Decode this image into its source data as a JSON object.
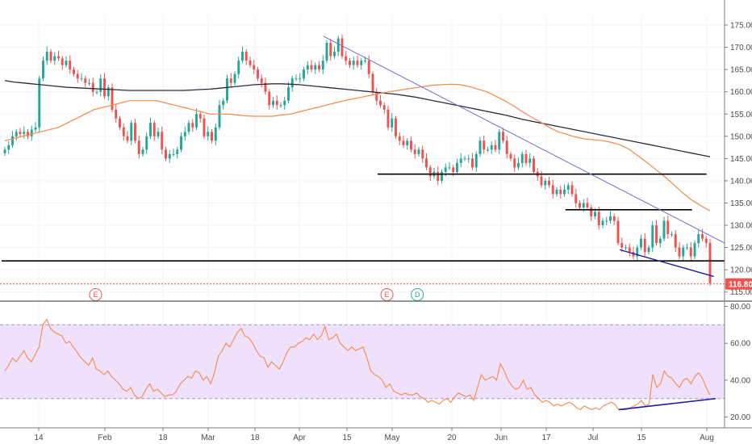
{
  "colors": {
    "up": "#26a69a",
    "down": "#ef5350",
    "ma_fast": "#f7894a",
    "ma_slow": "#2c2c3a",
    "trend": "#6a6fd8",
    "level": "#000000",
    "rsi": "#f7894a",
    "rsi_band": "#efe1fb",
    "rsi_divergence": "#1a1aa6",
    "price_tag": "#ef5350",
    "earnings": "#ef5350",
    "dividend": "#26a69a",
    "grid": "#f0f3fa",
    "axis": "#7d7d7d"
  },
  "chart_data": [
    {
      "type": "candlestick",
      "x_labels": [
        "14",
        "Feb",
        "18",
        "Mar",
        "18",
        "Apr",
        "15",
        "May",
        "20",
        "Jun",
        "17",
        "Jul",
        "15",
        "Aug"
      ],
      "y_ticks": [
        "175.00",
        "170.00",
        "165.00",
        "160.00",
        "155.00",
        "150.00",
        "145.00",
        "140.00",
        "135.00",
        "130.00",
        "125.00",
        "120.00",
        "115.00"
      ],
      "ylim": [
        113.5,
        177
      ],
      "last_price": 116.8,
      "last_price_label": "116.80",
      "closes": [
        147,
        148,
        150,
        151,
        150.5,
        151,
        150,
        151.5,
        152,
        163,
        167,
        169,
        167,
        168,
        167.5,
        166,
        167,
        165,
        164,
        163,
        163,
        162,
        162,
        160,
        160,
        163,
        159,
        161,
        156,
        154,
        152,
        150,
        149,
        153,
        149,
        146,
        147,
        150,
        153,
        150,
        151,
        147,
        145,
        146,
        146,
        147,
        150,
        151,
        153,
        152,
        155,
        154,
        150,
        151,
        149,
        152,
        157,
        158,
        163,
        162,
        164,
        167,
        169,
        167,
        166,
        165,
        163,
        162,
        160,
        157,
        158,
        157,
        157,
        158,
        161,
        163,
        163,
        163,
        165,
        166,
        165,
        166,
        165,
        167,
        171,
        168,
        169,
        172,
        168,
        167,
        166,
        167,
        166,
        167,
        167,
        164,
        160,
        158,
        157,
        156,
        152,
        154,
        150,
        149,
        148,
        149,
        147,
        146,
        147,
        145,
        143,
        141,
        142,
        140,
        142,
        143,
        143,
        142,
        144,
        145,
        145,
        145,
        143,
        146,
        149,
        147,
        147,
        148,
        147,
        151,
        149,
        146,
        145,
        143,
        144,
        146,
        144,
        145,
        142,
        141,
        139,
        140,
        139,
        137,
        138,
        137,
        138,
        139,
        137,
        135,
        134,
        135,
        134,
        132,
        133,
        130,
        131,
        131,
        132,
        131,
        126,
        125,
        125,
        124,
        123,
        125,
        127,
        124,
        125,
        130,
        126,
        127,
        131,
        128,
        128,
        125,
        123,
        125,
        125,
        123,
        126,
        128,
        127,
        126,
        117
      ],
      "ma50": [
        149,
        149.5,
        150,
        150.5,
        151,
        151.5,
        152,
        153,
        154,
        155,
        156,
        156.5,
        157,
        157.5,
        158,
        158,
        158,
        158,
        157.5,
        157,
        156.5,
        156,
        155.5,
        155,
        155,
        155,
        154.8,
        154.6,
        154.5,
        154.5,
        154.5,
        154.8,
        155,
        155.5,
        156,
        156.5,
        157,
        157.5,
        158,
        158.4,
        158.8,
        159.2,
        159.6,
        160,
        160.3,
        160.6,
        160.9,
        161.2,
        161.5,
        161.6,
        161.7,
        161.6,
        161.2,
        160.6,
        160,
        159,
        158,
        156.8,
        155.5,
        154.3,
        153.2,
        152,
        151,
        150.4,
        149.8,
        149.4,
        149.2,
        149,
        148.6,
        148,
        147,
        145.5,
        144,
        142.4,
        140.8,
        139,
        137.2,
        135.6,
        134.4,
        133.2
      ],
      "ma200": [
        162.5,
        162.2,
        162,
        161.8,
        161.6,
        161.4,
        161.2,
        161,
        160.9,
        160.8,
        160.7,
        160.6,
        160.5,
        160.4,
        160.3,
        160.3,
        160.3,
        160.3,
        160.3,
        160.3,
        160.3,
        160.4,
        160.5,
        160.6,
        160.8,
        161,
        161.2,
        161.4,
        161.6,
        161.7,
        161.8,
        161.8,
        161.7,
        161.6,
        161.4,
        161.2,
        161,
        160.8,
        160.6,
        160.4,
        160.2,
        160,
        159.8,
        159.6,
        159.4,
        159.1,
        158.8,
        158.4,
        158,
        157.6,
        157.2,
        156.8,
        156.4,
        156,
        155.6,
        155.2,
        154.8,
        154.3,
        153.8,
        153.4,
        153,
        152.6,
        152.2,
        151.8,
        151.4,
        151,
        150.6,
        150.2,
        149.8,
        149.4,
        149,
        148.6,
        148.2,
        147.8,
        147.4,
        147,
        146.6,
        146.2,
        145.8,
        145.4
      ],
      "support_levels": [
        {
          "price": 122,
          "from": 0,
          "to": 1
        },
        {
          "price": 141.5,
          "from": 0.52,
          "to": 0.975
        },
        {
          "price": 133.5,
          "from": 0.78,
          "to": 0.955
        }
      ],
      "downtrend": {
        "from": [
          0.445,
          172.5
        ],
        "to": [
          1.0,
          126
        ]
      },
      "lower_wedge": {
        "from": [
          0.855,
          124.5
        ],
        "to": [
          0.985,
          118.5
        ]
      },
      "events": [
        {
          "label": "E",
          "kind": "earnings",
          "at": 0.13
        },
        {
          "label": "E",
          "kind": "earnings",
          "at": 0.533
        },
        {
          "label": "D",
          "kind": "dividend",
          "at": 0.575
        }
      ]
    },
    {
      "type": "line",
      "y_ticks": [
        "80.00",
        "60.00",
        "40.00",
        "20.00"
      ],
      "ylim": [
        15,
        82
      ],
      "band": [
        30,
        70
      ],
      "rsi": [
        45,
        48,
        52,
        50,
        53,
        56,
        52,
        50,
        54,
        58,
        70,
        73,
        68,
        66,
        65,
        64,
        60,
        61,
        58,
        55,
        52,
        50,
        48,
        52,
        46,
        45,
        43,
        45,
        42,
        40,
        38,
        35,
        34,
        36,
        32,
        30,
        31,
        35,
        38,
        34,
        35,
        33,
        31,
        32,
        32,
        34,
        38,
        40,
        42,
        41,
        45,
        44,
        40,
        42,
        38,
        44,
        53,
        56,
        60,
        58,
        62,
        66,
        68,
        64,
        63,
        60,
        56,
        53,
        52,
        47,
        50,
        48,
        46,
        50,
        55,
        58,
        58,
        60,
        61,
        63,
        62,
        65,
        62,
        64,
        69,
        62,
        63,
        65,
        60,
        58,
        56,
        58,
        56,
        57,
        58,
        52,
        45,
        43,
        42,
        40,
        36,
        38,
        34,
        33,
        32,
        33,
        32,
        32,
        33,
        31,
        30,
        28,
        29,
        28,
        27,
        29,
        30,
        28,
        31,
        33,
        32,
        31,
        32,
        29,
        36,
        43,
        40,
        41,
        42,
        40,
        49,
        45,
        40,
        37,
        35,
        36,
        40,
        35,
        36,
        32,
        30,
        28,
        29,
        28,
        26,
        27,
        26,
        27,
        28,
        27,
        25,
        24,
        26,
        25,
        24,
        25,
        24,
        26,
        27,
        28,
        27,
        24,
        24,
        24,
        25,
        26,
        27,
        29,
        26,
        27,
        43,
        36,
        38,
        45,
        42,
        41,
        38,
        36,
        40,
        41,
        38,
        42,
        44,
        41,
        36,
        32
      ]
    }
  ]
}
